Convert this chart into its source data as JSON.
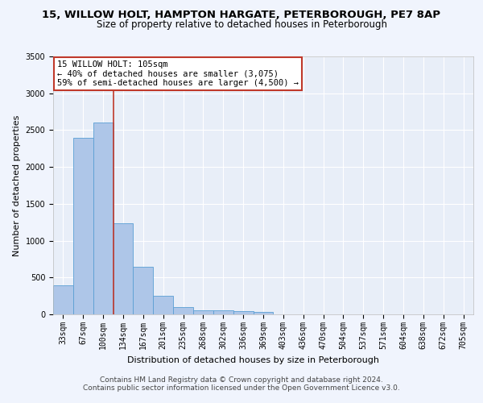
{
  "title_line1": "15, WILLOW HOLT, HAMPTON HARGATE, PETERBOROUGH, PE7 8AP",
  "title_line2": "Size of property relative to detached houses in Peterborough",
  "xlabel": "Distribution of detached houses by size in Peterborough",
  "ylabel": "Number of detached properties",
  "categories": [
    "33sqm",
    "67sqm",
    "100sqm",
    "134sqm",
    "167sqm",
    "201sqm",
    "235sqm",
    "268sqm",
    "302sqm",
    "336sqm",
    "369sqm",
    "403sqm",
    "436sqm",
    "470sqm",
    "504sqm",
    "537sqm",
    "571sqm",
    "604sqm",
    "638sqm",
    "672sqm",
    "705sqm"
  ],
  "values": [
    390,
    2400,
    2600,
    1240,
    640,
    255,
    95,
    60,
    60,
    45,
    30,
    0,
    0,
    0,
    0,
    0,
    0,
    0,
    0,
    0,
    0
  ],
  "bar_color": "#aec6e8",
  "bar_edgecolor": "#5a9fd4",
  "highlight_color": "#c0392b",
  "property_line_x": 2.5,
  "ylim": [
    0,
    3500
  ],
  "yticks": [
    0,
    500,
    1000,
    1500,
    2000,
    2500,
    3000,
    3500
  ],
  "annotation_text": "15 WILLOW HOLT: 105sqm\n← 40% of detached houses are smaller (3,075)\n59% of semi-detached houses are larger (4,500) →",
  "footnote1": "Contains HM Land Registry data © Crown copyright and database right 2024.",
  "footnote2": "Contains public sector information licensed under the Open Government Licence v3.0.",
  "fig_facecolor": "#f0f4fd",
  "background_color": "#e8eef8",
  "grid_color": "#ffffff",
  "title_fontsize": 9.5,
  "subtitle_fontsize": 8.5,
  "axis_label_fontsize": 8,
  "tick_fontsize": 7,
  "annotation_fontsize": 7.5,
  "footnote_fontsize": 6.5
}
